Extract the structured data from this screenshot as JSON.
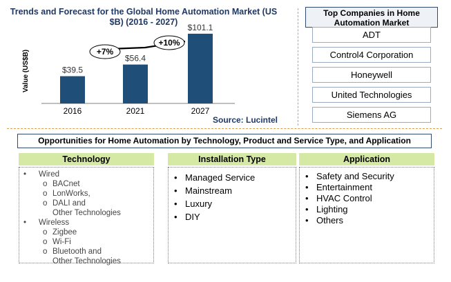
{
  "chart_data": {
    "type": "bar",
    "title": "Trends and Forecast for the Global Home Automation Market  (US $B) (2016  - 2027)",
    "ylabel": "Value (US$B)",
    "xlabel": "",
    "categories": [
      "2016",
      "2021",
      "2027"
    ],
    "values": [
      39.5,
      56.4,
      101.1
    ],
    "value_labels": [
      "$39.5",
      "$56.4",
      "$101.1"
    ],
    "ylim": [
      0,
      110
    ],
    "bar_color": "#1f4e79",
    "grid": false,
    "annotations": [
      {
        "from": "2016",
        "to": "2021",
        "label": "+7%"
      },
      {
        "from": "2021",
        "to": "2027",
        "label": "+10%"
      }
    ],
    "source": "Source: Lucintel"
  },
  "companies": {
    "title": "Top Companies in Home Automation Market",
    "items": [
      "ADT",
      "Control4 Corporation",
      "Honeywell",
      "United Technologies",
      "Siemens AG"
    ]
  },
  "opportunities": {
    "title": "Opportunities for Home Automation by  Technology, Product and Service Type, and Application",
    "technology": {
      "header": "Technology",
      "groups": [
        {
          "label": "Wired",
          "items": [
            "BACnet",
            "LonWorks,",
            "DALI and",
            "Other Technologies"
          ]
        },
        {
          "label": "Wireless",
          "items": [
            "Zigbee",
            "Wi-Fi",
            "Bluetooth and",
            "Other Technologies"
          ]
        }
      ],
      "bullet": "•",
      "sub_bullet": "o"
    },
    "installation": {
      "header": "Installation Type",
      "items": [
        "Managed Service",
        "Mainstream",
        "Luxury",
        "DIY"
      ]
    },
    "application": {
      "header": "Application",
      "items": [
        "Safety and Security",
        "Entertainment",
        "HVAC Control",
        "Lighting",
        "Others"
      ]
    },
    "bullet": "•"
  },
  "colors": {
    "header_green": "#d5e8a4",
    "navy_border": "#2e4b6e",
    "divider": "#d9a04a"
  }
}
